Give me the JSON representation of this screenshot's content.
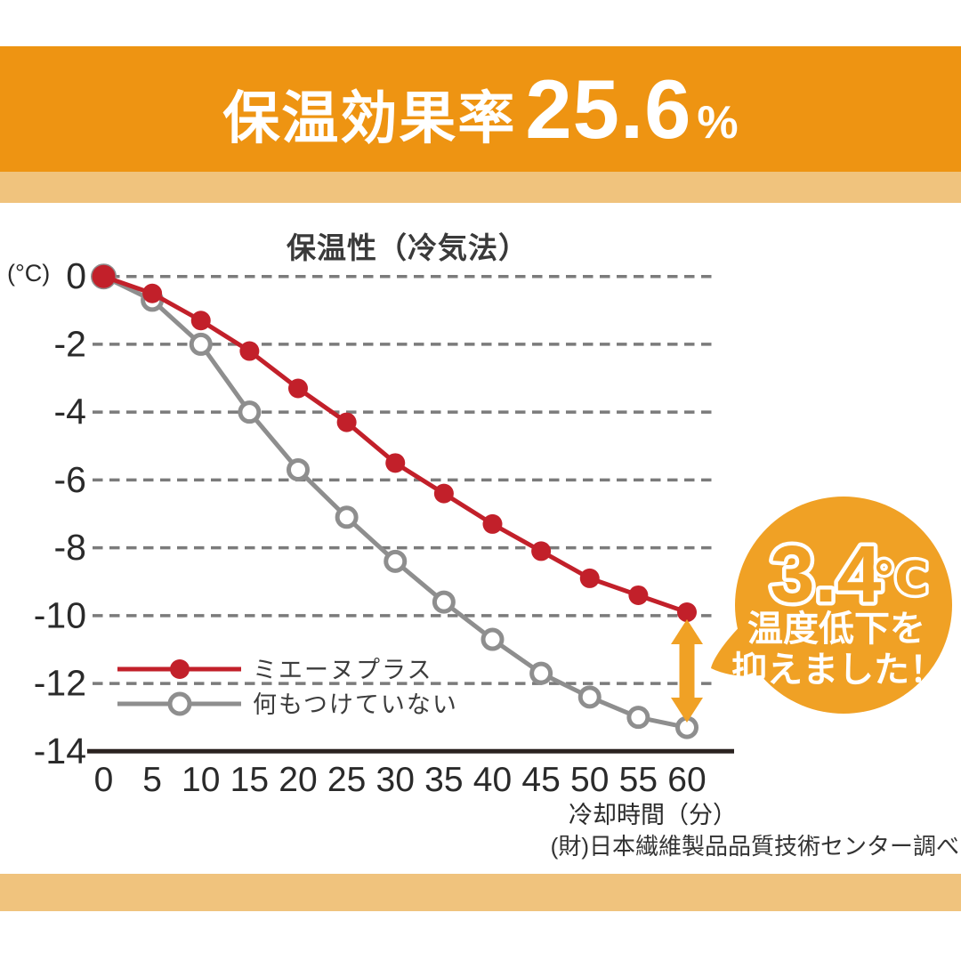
{
  "header": {
    "title": "保温効果率",
    "value": "25.6",
    "percent": "%"
  },
  "chart_data": {
    "type": "line",
    "title": "保温性（冷気法）",
    "y_unit": "(°C)",
    "xlabel": "冷却時間（分）",
    "xlim": [
      0,
      60
    ],
    "ylim": [
      -14,
      0
    ],
    "x": [
      0,
      5,
      10,
      15,
      20,
      25,
      30,
      35,
      40,
      45,
      50,
      55,
      60
    ],
    "x_tick_labels": [
      "0",
      "5",
      "10",
      "15",
      "20",
      "25",
      "30",
      "35",
      "40",
      "45",
      "50",
      "55",
      "60"
    ],
    "y_ticks": [
      0,
      -2,
      -4,
      -6,
      -8,
      -10,
      -12,
      -14
    ],
    "y_tick_labels": [
      "0",
      "-2",
      "-4",
      "-6",
      "-8",
      "-10",
      "-12",
      "-14"
    ],
    "grid": "horizontal-dashed",
    "legend_position": "inside-bottom-left",
    "series": [
      {
        "name": "ミエーヌプラス",
        "color": "#c2202a",
        "marker": "filled",
        "values": [
          0,
          -0.5,
          -1.3,
          -2.2,
          -3.3,
          -4.3,
          -5.5,
          -6.4,
          -7.3,
          -8.1,
          -8.9,
          -9.4,
          -9.9
        ]
      },
      {
        "name": "何もつけていない",
        "color": "#8e8e8e",
        "marker": "open",
        "values": [
          0,
          -0.7,
          -2.0,
          -4.0,
          -5.7,
          -7.1,
          -8.4,
          -9.6,
          -10.7,
          -11.7,
          -12.4,
          -13.0,
          -13.3
        ]
      }
    ]
  },
  "callout": {
    "value": "3.4",
    "unit": "℃",
    "line1": "温度低下を",
    "line2": "抑えました！"
  },
  "footer": {
    "source": "(財)日本繊維製品品質技術センター調べ"
  },
  "colors": {
    "band_orange": "#ee9412",
    "strip_tan": "#f0c37d",
    "accent_orange": "#f0a125",
    "series_red": "#c2202a",
    "series_gray": "#8e8e8e",
    "grid_gray": "#7b7b7b",
    "axis_dark": "#2b2320",
    "legend_text": "#3c3c3c",
    "tick_text": "#2a2a2a"
  }
}
